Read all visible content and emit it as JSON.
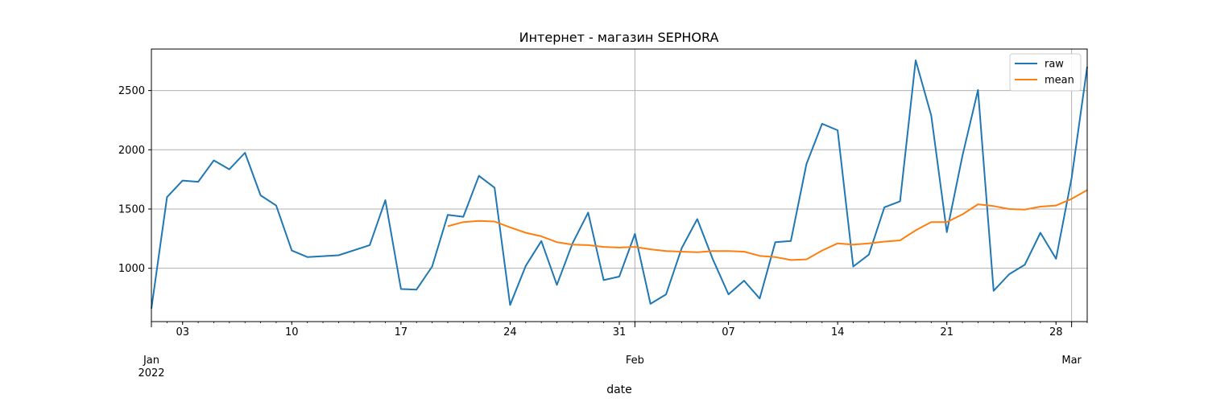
{
  "chart_data": {
    "type": "line",
    "title": "Интернет - магазин SEPHORA",
    "xlabel": "date",
    "ylabel": "",
    "grid": true,
    "legend_position": "top-right",
    "x_start": "2022-01-01",
    "x_end": "2022-03-01",
    "ylim": [
      550,
      2850
    ],
    "y_ticks": [
      1000,
      1500,
      2000,
      2500
    ],
    "x_ticks": [
      {
        "date": "2022-01-01",
        "label": [
          "Jan",
          "2022"
        ]
      },
      {
        "date": "2022-01-03",
        "label": [
          "03"
        ]
      },
      {
        "date": "2022-01-10",
        "label": [
          "10"
        ]
      },
      {
        "date": "2022-01-17",
        "label": [
          "17"
        ]
      },
      {
        "date": "2022-01-24",
        "label": [
          "24"
        ]
      },
      {
        "date": "2022-01-31",
        "label": [
          "31"
        ]
      },
      {
        "date": "2022-02-01",
        "label": [
          "Feb"
        ]
      },
      {
        "date": "2022-02-07",
        "label": [
          "07"
        ]
      },
      {
        "date": "2022-02-14",
        "label": [
          "14"
        ]
      },
      {
        "date": "2022-02-21",
        "label": [
          "21"
        ]
      },
      {
        "date": "2022-02-28",
        "label": [
          "28"
        ]
      },
      {
        "date": "2022-03-01",
        "label": [
          "Mar"
        ]
      }
    ],
    "series": [
      {
        "name": "raw",
        "color": "#1f77b4",
        "points": [
          [
            "2022-01-01",
            660
          ],
          [
            "2022-01-02",
            1600
          ],
          [
            "2022-01-03",
            1740
          ],
          [
            "2022-01-04",
            1730
          ],
          [
            "2022-01-05",
            1910
          ],
          [
            "2022-01-06",
            1835
          ],
          [
            "2022-01-07",
            1975
          ],
          [
            "2022-01-08",
            1615
          ],
          [
            "2022-01-09",
            1530
          ],
          [
            "2022-01-10",
            1150
          ],
          [
            "2022-01-11",
            1095
          ],
          [
            "2022-01-13",
            1110
          ],
          [
            "2022-01-15",
            1195
          ],
          [
            "2022-01-16",
            1575
          ],
          [
            "2022-01-17",
            825
          ],
          [
            "2022-01-18",
            820
          ],
          [
            "2022-01-19",
            1015
          ],
          [
            "2022-01-20",
            1450
          ],
          [
            "2022-01-21",
            1435
          ],
          [
            "2022-01-22",
            1780
          ],
          [
            "2022-01-23",
            1680
          ],
          [
            "2022-01-24",
            690
          ],
          [
            "2022-01-25",
            1020
          ],
          [
            "2022-01-26",
            1230
          ],
          [
            "2022-01-27",
            860
          ],
          [
            "2022-01-28",
            1210
          ],
          [
            "2022-01-29",
            1470
          ],
          [
            "2022-01-30",
            900
          ],
          [
            "2022-01-31",
            930
          ],
          [
            "2022-02-01",
            1290
          ],
          [
            "2022-02-02",
            700
          ],
          [
            "2022-02-03",
            780
          ],
          [
            "2022-02-04",
            1170
          ],
          [
            "2022-02-05",
            1415
          ],
          [
            "2022-02-06",
            1075
          ],
          [
            "2022-02-07",
            780
          ],
          [
            "2022-02-08",
            895
          ],
          [
            "2022-02-09",
            745
          ],
          [
            "2022-02-10",
            1220
          ],
          [
            "2022-02-11",
            1230
          ],
          [
            "2022-02-12",
            1880
          ],
          [
            "2022-02-13",
            2220
          ],
          [
            "2022-02-14",
            2165
          ],
          [
            "2022-02-15",
            1015
          ],
          [
            "2022-02-16",
            1115
          ],
          [
            "2022-02-17",
            1515
          ],
          [
            "2022-02-18",
            1565
          ],
          [
            "2022-02-19",
            2755
          ],
          [
            "2022-02-20",
            2290
          ],
          [
            "2022-02-21",
            1305
          ],
          [
            "2022-02-22",
            1950
          ],
          [
            "2022-02-23",
            2505
          ],
          [
            "2022-02-24",
            810
          ],
          [
            "2022-02-25",
            950
          ],
          [
            "2022-02-26",
            1030
          ],
          [
            "2022-02-27",
            1300
          ],
          [
            "2022-02-28",
            1080
          ],
          [
            "2022-03-01",
            1760
          ],
          [
            "2022-03-02",
            2700
          ]
        ]
      },
      {
        "name": "mean",
        "color": "#ff7f0e",
        "points": [
          [
            "2022-01-20",
            1355
          ],
          [
            "2022-01-21",
            1390
          ],
          [
            "2022-01-22",
            1400
          ],
          [
            "2022-01-23",
            1395
          ],
          [
            "2022-01-24",
            1345
          ],
          [
            "2022-01-25",
            1300
          ],
          [
            "2022-01-26",
            1270
          ],
          [
            "2022-01-27",
            1220
          ],
          [
            "2022-01-28",
            1200
          ],
          [
            "2022-01-29",
            1195
          ],
          [
            "2022-01-30",
            1180
          ],
          [
            "2022-01-31",
            1175
          ],
          [
            "2022-02-01",
            1180
          ],
          [
            "2022-02-02",
            1160
          ],
          [
            "2022-02-03",
            1145
          ],
          [
            "2022-02-04",
            1140
          ],
          [
            "2022-02-05",
            1135
          ],
          [
            "2022-02-06",
            1145
          ],
          [
            "2022-02-07",
            1145
          ],
          [
            "2022-02-08",
            1140
          ],
          [
            "2022-02-09",
            1105
          ],
          [
            "2022-02-10",
            1095
          ],
          [
            "2022-02-11",
            1070
          ],
          [
            "2022-02-12",
            1075
          ],
          [
            "2022-02-13",
            1150
          ],
          [
            "2022-02-14",
            1210
          ],
          [
            "2022-02-15",
            1200
          ],
          [
            "2022-02-16",
            1210
          ],
          [
            "2022-02-17",
            1225
          ],
          [
            "2022-02-18",
            1235
          ],
          [
            "2022-02-19",
            1320
          ],
          [
            "2022-02-20",
            1390
          ],
          [
            "2022-02-21",
            1390
          ],
          [
            "2022-02-22",
            1455
          ],
          [
            "2022-02-23",
            1540
          ],
          [
            "2022-02-24",
            1525
          ],
          [
            "2022-02-25",
            1500
          ],
          [
            "2022-02-26",
            1495
          ],
          [
            "2022-02-27",
            1520
          ],
          [
            "2022-02-28",
            1530
          ],
          [
            "2022-03-01",
            1585
          ],
          [
            "2022-03-02",
            1660
          ]
        ]
      }
    ]
  }
}
